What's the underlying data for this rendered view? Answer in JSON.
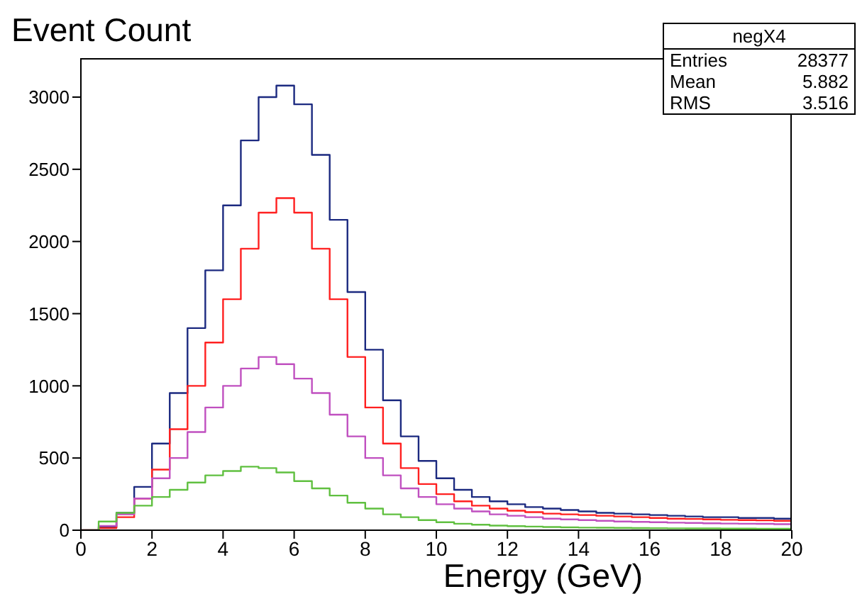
{
  "chart_data": {
    "type": "histogram",
    "ylabel": "Event Count",
    "xlabel": "Energy (GeV)",
    "bins": [
      0,
      0.5,
      1,
      1.5,
      2,
      2.5,
      3,
      3.5,
      4,
      4.5,
      5,
      5.5,
      6,
      6.5,
      7,
      7.5,
      8,
      8.5,
      9,
      9.5,
      10,
      10.5,
      11,
      11.5,
      12,
      12.5,
      13,
      13.5,
      14,
      14.5,
      15,
      15.5,
      16,
      16.5,
      17,
      17.5,
      18,
      18.5,
      19,
      19.5,
      20
    ],
    "series": [
      {
        "color": "#1c2a80",
        "values": [
          0,
          20,
          120,
          300,
          600,
          950,
          1400,
          1800,
          2250,
          2700,
          3000,
          3080,
          2950,
          2600,
          2150,
          1650,
          1250,
          900,
          650,
          480,
          360,
          280,
          230,
          200,
          180,
          160,
          150,
          140,
          130,
          120,
          115,
          110,
          105,
          100,
          95,
          90,
          90,
          85,
          85,
          80
        ]
      },
      {
        "color": "#ff2020",
        "values": [
          0,
          15,
          90,
          220,
          420,
          700,
          1000,
          1300,
          1600,
          1950,
          2200,
          2300,
          2200,
          1950,
          1600,
          1200,
          850,
          600,
          430,
          320,
          250,
          200,
          170,
          150,
          135,
          125,
          115,
          110,
          105,
          100,
          95,
          90,
          85,
          80,
          78,
          75,
          72,
          70,
          68,
          65
        ]
      },
      {
        "color": "#c050c0",
        "values": [
          0,
          30,
          110,
          220,
          360,
          500,
          680,
          850,
          1000,
          1120,
          1200,
          1150,
          1050,
          950,
          800,
          650,
          500,
          380,
          290,
          230,
          180,
          150,
          130,
          110,
          100,
          90,
          80,
          75,
          70,
          65,
          60,
          58,
          55,
          52,
          50,
          48,
          46,
          45,
          44,
          42
        ]
      },
      {
        "color": "#60c040",
        "values": [
          0,
          60,
          120,
          170,
          230,
          280,
          330,
          380,
          410,
          440,
          430,
          400,
          340,
          290,
          240,
          190,
          150,
          110,
          90,
          70,
          55,
          45,
          38,
          32,
          28,
          25,
          22,
          20,
          18,
          17,
          16,
          15,
          14,
          13,
          12,
          12,
          11,
          11,
          10,
          10
        ]
      }
    ],
    "xlim": [
      0,
      20
    ],
    "xticks": [
      0,
      2,
      4,
      6,
      8,
      10,
      12,
      14,
      16,
      18,
      20
    ],
    "ylim": [
      0,
      3270
    ],
    "yticks": [
      0,
      500,
      1000,
      1500,
      2000,
      2500,
      3000
    ],
    "annotations": [
      "negX4",
      "Entries 28377",
      "Mean 5.882",
      "RMS 3.516"
    ]
  }
}
